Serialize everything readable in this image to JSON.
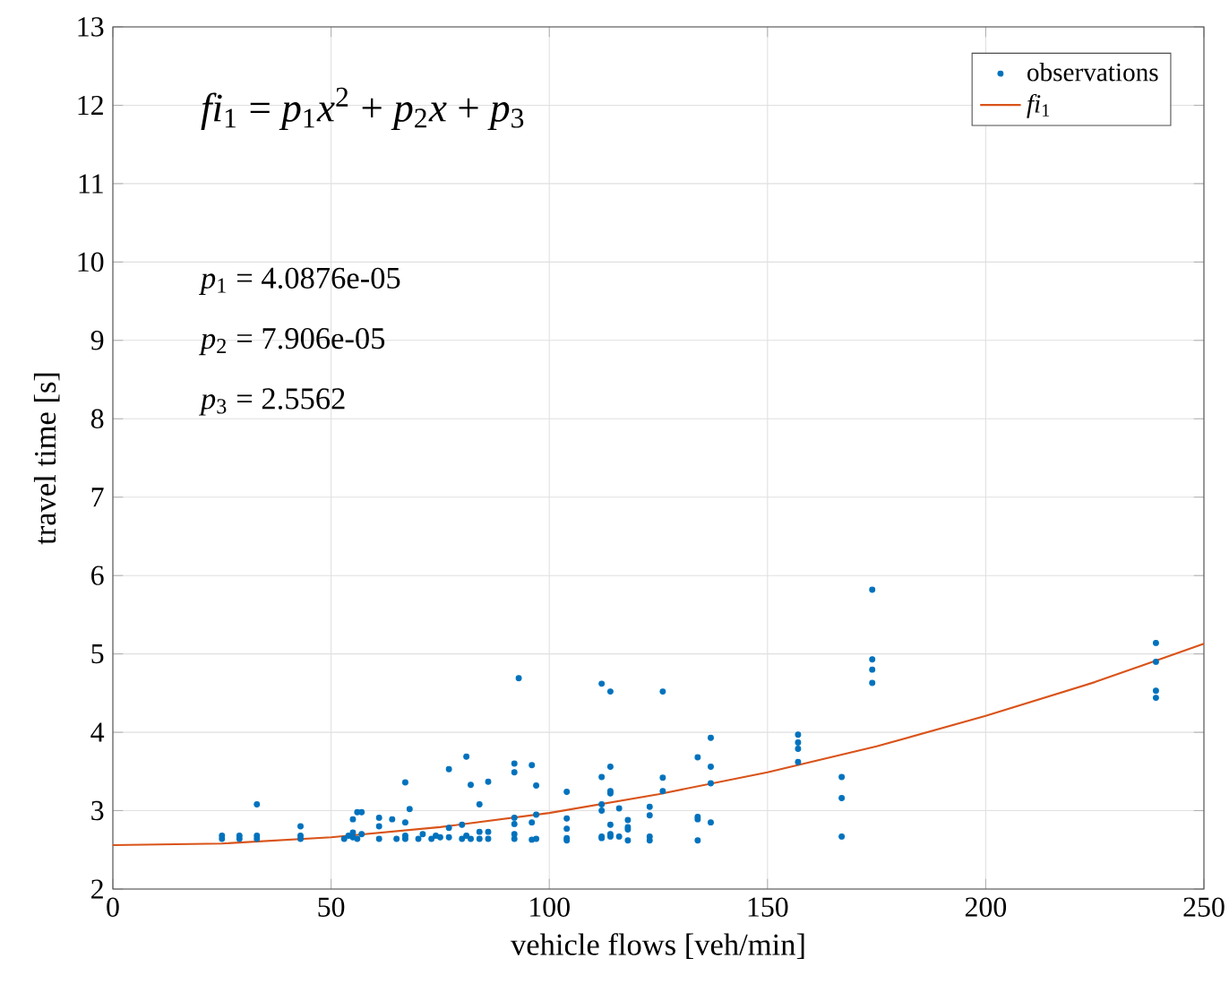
{
  "chart_data": {
    "type": "scatter",
    "xlabel": "vehicle flows [veh/min]",
    "ylabel": "travel time [s]",
    "xlim": [
      0,
      250
    ],
    "ylim": [
      2,
      13
    ],
    "xticks": [
      0,
      50,
      100,
      150,
      200,
      250
    ],
    "yticks": [
      2,
      3,
      4,
      5,
      6,
      7,
      8,
      9,
      10,
      11,
      12,
      13
    ],
    "grid": true,
    "legend": "top right",
    "annotations": [
      "*fi*$_{1}$ = *p*$_{1}$*x*$^{2}$ + *p*$_{2}$*x* + *p*$_{3}$",
      "*p*$_{1}$ = 4.0876e-05",
      "*p*$_{2}$ = 7.906e-05",
      "*p*$_{3}$ = 2.5562"
    ],
    "series": [
      {
        "name": "observations",
        "marker": "circle",
        "color": "#0072bd",
        "x": [
          25,
          25,
          29,
          29,
          33,
          33,
          33,
          43,
          43,
          43,
          53,
          54,
          55,
          55,
          56,
          57,
          55,
          56,
          57,
          61,
          61,
          61,
          64,
          67,
          67,
          67,
          68,
          65,
          67,
          70,
          71,
          73,
          74,
          75,
          77,
          77,
          77,
          80,
          80,
          81,
          82,
          81,
          82,
          84,
          84,
          84,
          86,
          86,
          86,
          92,
          92,
          92,
          92,
          92,
          92,
          93,
          96,
          97,
          97,
          96,
          96,
          97,
          104,
          104,
          104,
          104,
          104,
          112,
          112,
          112,
          112,
          112,
          112,
          114,
          114,
          114,
          114,
          114,
          114,
          114,
          116,
          116,
          118,
          118,
          118,
          118,
          123,
          123,
          123,
          123,
          126,
          126,
          126,
          134,
          134,
          134,
          134,
          137,
          137,
          137,
          137,
          157,
          157,
          157,
          157,
          167,
          167,
          167,
          174,
          174,
          174,
          174,
          239,
          239,
          239,
          239
        ],
        "values": [
          2.64,
          2.68,
          2.64,
          2.68,
          3.08,
          2.64,
          2.68,
          2.8,
          2.64,
          2.68,
          2.64,
          2.68,
          2.66,
          2.72,
          2.64,
          2.7,
          2.89,
          2.98,
          2.98,
          2.91,
          2.8,
          2.64,
          2.89,
          3.36,
          2.85,
          2.64,
          3.02,
          2.64,
          2.68,
          2.64,
          2.7,
          2.64,
          2.68,
          2.66,
          3.53,
          2.78,
          2.66,
          2.82,
          2.64,
          2.68,
          2.64,
          3.69,
          3.33,
          3.08,
          2.73,
          2.64,
          3.37,
          2.73,
          2.64,
          3.6,
          3.49,
          2.91,
          2.83,
          2.7,
          2.64,
          4.69,
          3.58,
          3.32,
          2.95,
          2.85,
          2.63,
          2.64,
          3.24,
          2.9,
          2.77,
          2.65,
          2.62,
          4.62,
          3.43,
          3.08,
          3.0,
          2.67,
          2.65,
          4.52,
          3.56,
          3.25,
          3.22,
          2.82,
          2.7,
          2.67,
          3.03,
          2.67,
          2.88,
          2.79,
          2.76,
          2.62,
          3.05,
          2.94,
          2.67,
          2.62,
          4.52,
          3.42,
          3.25,
          3.68,
          2.92,
          2.89,
          2.62,
          3.93,
          3.56,
          3.35,
          2.85,
          3.97,
          3.87,
          3.79,
          3.62,
          3.43,
          3.16,
          2.67,
          5.82,
          4.93,
          4.8,
          4.63,
          5.14,
          4.9,
          4.53,
          4.44
        ]
      },
      {
        "name": "*fi*$_{1}$",
        "type": "line",
        "marker": "none",
        "line_style": "solid",
        "color": "#d95319",
        "x": [
          0,
          25,
          50,
          75,
          100,
          125,
          150,
          175,
          200,
          225,
          250
        ],
        "values": [
          2.56,
          2.58,
          2.66,
          2.79,
          2.97,
          3.21,
          3.49,
          3.82,
          4.21,
          4.64,
          5.13
        ]
      }
    ]
  }
}
